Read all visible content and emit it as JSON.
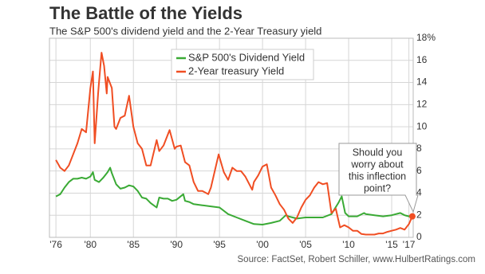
{
  "chart_data": {
    "type": "line",
    "title": "The Battle of the Yields",
    "subtitle": "The S&P 500's dividend yield and the 2-Year Treasury yield",
    "source": "Source: FactSet, Robert Schiller, www.HulbertRatings.com",
    "annotation": [
      "Should you",
      "worry about",
      "this inflection",
      "point?"
    ],
    "xlim": [
      1975.25,
      2017.5
    ],
    "xticks": [
      {
        "value": 1976,
        "label": "'76"
      },
      {
        "value": 1980,
        "label": "'80"
      },
      {
        "value": 1985,
        "label": "'85"
      },
      {
        "value": 1990,
        "label": "'90"
      },
      {
        "value": 1995,
        "label": "'95"
      },
      {
        "value": 2000,
        "label": "'00"
      },
      {
        "value": 2005,
        "label": "'05"
      },
      {
        "value": 2010,
        "label": "'10"
      },
      {
        "value": 2015,
        "label": "'15"
      },
      {
        "value": 2017,
        "label": "'17"
      }
    ],
    "ylim": [
      0,
      18
    ],
    "yticks": [
      0,
      2,
      4,
      6,
      8,
      10,
      12,
      14,
      16,
      {
        "value": 18,
        "label": "18%"
      }
    ],
    "grid": true,
    "series": [
      {
        "name": "S&P 500's Dividend Yield",
        "color": "#3aaa35",
        "x": [
          1976,
          1976.5,
          1977,
          1977.5,
          1978,
          1978.5,
          1979,
          1979.5,
          1980,
          1980.3,
          1980.5,
          1981,
          1981.5,
          1982,
          1982.3,
          1982.5,
          1983,
          1983.5,
          1984,
          1984.5,
          1985,
          1985.5,
          1986,
          1986.5,
          1987,
          1987.7,
          1988,
          1988.5,
          1989,
          1989.5,
          1990,
          1990.8,
          1991,
          1991.5,
          1992,
          1993,
          1994,
          1995,
          1996,
          1997,
          1998,
          1999,
          2000,
          2001,
          2002,
          2002.7,
          2003,
          2004,
          2005,
          2006,
          2007,
          2008,
          2008.8,
          2009.2,
          2009.6,
          2010,
          2011,
          2011.8,
          2012,
          2013,
          2014,
          2015,
          2016,
          2016.5,
          2017,
          2017.3
        ],
        "values": [
          3.7,
          3.9,
          4.5,
          5.0,
          5.3,
          5.3,
          5.4,
          5.3,
          5.5,
          5.9,
          5.2,
          5.0,
          5.4,
          5.9,
          6.3,
          5.8,
          4.8,
          4.4,
          4.5,
          4.7,
          4.6,
          4.2,
          3.6,
          3.5,
          3.1,
          2.7,
          3.6,
          3.5,
          3.5,
          3.3,
          3.4,
          3.9,
          3.3,
          3.2,
          3.0,
          2.9,
          2.8,
          2.7,
          2.1,
          1.8,
          1.5,
          1.2,
          1.15,
          1.3,
          1.5,
          2.0,
          1.9,
          1.7,
          1.8,
          1.8,
          1.8,
          2.1,
          3.1,
          3.7,
          2.2,
          1.9,
          1.9,
          2.2,
          2.1,
          2.0,
          1.9,
          2.0,
          2.2,
          2.0,
          1.9,
          2.0
        ]
      },
      {
        "name": "2-Year treasury Yield",
        "color": "#f04e23",
        "x": [
          1976,
          1976.5,
          1977,
          1977.5,
          1978,
          1978.5,
          1979,
          1979.5,
          1980,
          1980.3,
          1980.5,
          1980.9,
          1981,
          1981.3,
          1981.6,
          1981.9,
          1982,
          1982.5,
          1982.8,
          1983,
          1983.5,
          1984,
          1984.5,
          1985,
          1985.5,
          1986,
          1986.5,
          1987,
          1987.7,
          1988,
          1988.5,
          1989.2,
          1989.8,
          1990,
          1990.5,
          1991,
          1991.5,
          1992,
          1992.5,
          1993,
          1993.7,
          1994,
          1994.9,
          1995.5,
          1996,
          1996.5,
          1997,
          1997.5,
          1998,
          1998.8,
          1999,
          1999.5,
          2000,
          2000.5,
          2001,
          2001.5,
          2002,
          2002.5,
          2003,
          2003.5,
          2004,
          2004.5,
          2005,
          2005.5,
          2006,
          2006.5,
          2007,
          2007.5,
          2008,
          2008.5,
          2009,
          2009.5,
          2010,
          2010.5,
          2011,
          2011.5,
          2012,
          2012.5,
          2013,
          2013.5,
          2014,
          2014.5,
          2015,
          2015.5,
          2016,
          2016.5,
          2017,
          2017.4
        ],
        "values": [
          7.0,
          6.3,
          6.0,
          6.5,
          7.5,
          8.5,
          9.8,
          9.5,
          13.5,
          15.0,
          8.5,
          13.0,
          14.0,
          16.7,
          15.5,
          13.0,
          14.5,
          13.5,
          10.0,
          9.8,
          10.8,
          11.0,
          12.8,
          10.0,
          8.5,
          8.0,
          6.5,
          6.5,
          8.8,
          7.8,
          8.3,
          9.7,
          8.0,
          8.2,
          8.3,
          6.8,
          6.5,
          5.0,
          4.2,
          4.2,
          3.9,
          4.5,
          7.5,
          5.9,
          5.2,
          6.3,
          6.0,
          6.0,
          5.5,
          4.3,
          5.0,
          5.6,
          6.4,
          6.6,
          4.5,
          3.8,
          3.0,
          2.5,
          1.7,
          1.3,
          1.8,
          2.7,
          3.4,
          3.8,
          4.5,
          5.0,
          4.8,
          4.9,
          2.2,
          2.6,
          0.9,
          1.1,
          0.9,
          0.6,
          0.6,
          0.3,
          0.25,
          0.25,
          0.25,
          0.35,
          0.35,
          0.5,
          0.6,
          0.7,
          0.85,
          0.7,
          1.2,
          1.9
        ]
      }
    ]
  }
}
